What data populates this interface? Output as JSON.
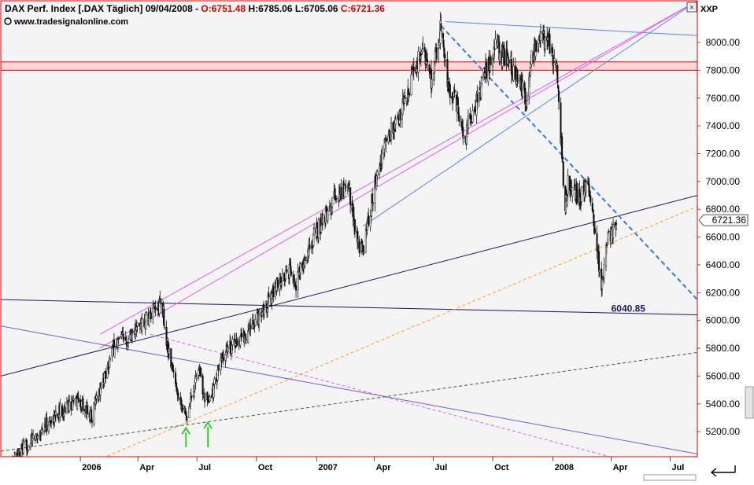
{
  "header": {
    "title": "DAX Perf. Index [.DAX  Täglich] 09/04/2008 - ",
    "open": "O:6751.48",
    "high": "H:6785.06",
    "low": "L:6705.06",
    "close": "C:6721.36",
    "source": "www.tradesignalonline.com"
  },
  "controls": {
    "close_glyph": "×",
    "style_label": "XXP"
  },
  "colors": {
    "background": "#f4f4f4",
    "border": "#d40000",
    "candle": "#111111",
    "band": "#ffd6d6",
    "band_edge": "#d40000",
    "price_box": "#ffffff",
    "navy": "#1a1a60",
    "light_blue": "#5a86e8",
    "dashed_blue": "#3a78d8",
    "orange": "#ff9a2e",
    "magenta": "#e060f0",
    "purple": "#7a5ad0",
    "green_dashed": "#2a6a2a",
    "arrow": "#00d000"
  },
  "chart_data": {
    "type": "candlestick",
    "title": "DAX Perf. Index [.DAX  Täglich]",
    "date": "09/04/2008",
    "ylim": [
      5020,
      8300
    ],
    "y_ticks": [
      5200,
      5400,
      5600,
      5800,
      6000,
      6200,
      6400,
      6600,
      6800,
      7000,
      7200,
      7400,
      7600,
      7800,
      8000
    ],
    "y_tick_labels": [
      "5200.00",
      "5400.00",
      "5600.00",
      "5800.00",
      "6000.00",
      "6200.00",
      "6400.00",
      "6600.00",
      "6800.00",
      "7000.00",
      "7200.00",
      "7400.00",
      "7600.00",
      "7800.00",
      "8000.00"
    ],
    "x_range": [
      "2005-09-01",
      "2008-08-12"
    ],
    "x_ticks": [
      {
        "label": "2006",
        "date": "2006-01-02"
      },
      {
        "label": "Apr",
        "date": "2006-04-01"
      },
      {
        "label": "Jul",
        "date": "2006-07-01"
      },
      {
        "label": "Oct",
        "date": "2006-10-01"
      },
      {
        "label": "2007",
        "date": "2007-01-02"
      },
      {
        "label": "Apr",
        "date": "2007-04-01"
      },
      {
        "label": "Jul",
        "date": "2007-07-01"
      },
      {
        "label": "Oct",
        "date": "2007-10-01"
      },
      {
        "label": "2008",
        "date": "2008-01-02"
      },
      {
        "label": "Apr",
        "date": "2008-04-01"
      },
      {
        "label": "Jul",
        "date": "2008-07-01"
      }
    ],
    "last_price": 6721.36,
    "last_price_label": "6721.36",
    "annotation": {
      "text": "6040.85",
      "value": 6040.85
    },
    "resistance_band": [
      7800,
      7860
    ],
    "ohlc": {
      "open": 6751.48,
      "high": 6785.06,
      "low": 6705.06,
      "close": 6721.36
    },
    "price_path": [
      [
        "2005-09-01",
        4880
      ],
      [
        "2005-10-01",
        5050
      ],
      [
        "2005-11-01",
        5200
      ],
      [
        "2005-12-01",
        5350
      ],
      [
        "2005-12-30",
        5430
      ],
      [
        "2006-01-20",
        5320
      ],
      [
        "2006-02-01",
        5500
      ],
      [
        "2006-02-20",
        5780
      ],
      [
        "2006-03-01",
        5840
      ],
      [
        "2006-03-15",
        5880
      ],
      [
        "2006-04-01",
        5950
      ],
      [
        "2006-04-20",
        6030
      ],
      [
        "2006-05-08",
        6120
      ],
      [
        "2006-05-15",
        5850
      ],
      [
        "2006-05-25",
        5620
      ],
      [
        "2006-06-14",
        5300
      ],
      [
        "2006-06-23",
        5480
      ],
      [
        "2006-07-03",
        5650
      ],
      [
        "2006-07-18",
        5370
      ],
      [
        "2006-08-01",
        5600
      ],
      [
        "2006-08-16",
        5800
      ],
      [
        "2006-09-01",
        5850
      ],
      [
        "2006-09-15",
        5900
      ],
      [
        "2006-10-01",
        6000
      ],
      [
        "2006-10-20",
        6150
      ],
      [
        "2006-11-01",
        6250
      ],
      [
        "2006-11-20",
        6350
      ],
      [
        "2006-12-01",
        6280
      ],
      [
        "2006-12-29",
        6600
      ],
      [
        "2007-01-15",
        6750
      ],
      [
        "2007-02-01",
        6900
      ],
      [
        "2007-02-20",
        6970
      ],
      [
        "2007-03-05",
        6600
      ],
      [
        "2007-03-14",
        6480
      ],
      [
        "2007-04-01",
        6950
      ],
      [
        "2007-04-20",
        7300
      ],
      [
        "2007-05-10",
        7450
      ],
      [
        "2007-06-01",
        7800
      ],
      [
        "2007-06-15",
        7950
      ],
      [
        "2007-06-28",
        7720
      ],
      [
        "2007-07-13",
        8100
      ],
      [
        "2007-07-25",
        7650
      ],
      [
        "2007-08-08",
        7550
      ],
      [
        "2007-08-16",
        7300
      ],
      [
        "2007-09-01",
        7500
      ],
      [
        "2007-09-20",
        7800
      ],
      [
        "2007-10-05",
        7950
      ],
      [
        "2007-10-20",
        7900
      ],
      [
        "2007-11-01",
        7800
      ],
      [
        "2007-11-21",
        7600
      ],
      [
        "2007-12-01",
        7900
      ],
      [
        "2007-12-11",
        8050
      ],
      [
        "2007-12-28",
        8000
      ],
      [
        "2008-01-08",
        7800
      ],
      [
        "2008-01-21",
        6780
      ],
      [
        "2008-01-25",
        7000
      ],
      [
        "2008-02-10",
        6900
      ],
      [
        "2008-02-25",
        6950
      ],
      [
        "2008-03-05",
        6700
      ],
      [
        "2008-03-17",
        6250
      ],
      [
        "2008-03-25",
        6550
      ],
      [
        "2008-04-09",
        6720
      ]
    ],
    "trendlines": [
      {
        "color": "navy",
        "style": "solid",
        "from": [
          "2005-09-01",
          6150
        ],
        "to": [
          "2008-08-12",
          6040.85
        ]
      },
      {
        "color": "navy",
        "style": "solid",
        "from": [
          "2005-09-01",
          5600
        ],
        "to": [
          "2008-08-12",
          6900
        ]
      },
      {
        "color": "light_blue",
        "style": "solid",
        "from": [
          "2007-03-15",
          6680
        ],
        "to": [
          "2008-08-12",
          8300
        ]
      },
      {
        "color": "light_blue",
        "style": "solid",
        "from": [
          "2007-07-20",
          8150
        ],
        "to": [
          "2008-08-12",
          8050
        ]
      },
      {
        "color": "dashed_blue",
        "style": "dashed",
        "from": [
          "2007-07-13",
          8120
        ],
        "to": [
          "2008-08-12",
          6150
        ]
      },
      {
        "color": "orange",
        "style": "dashed",
        "from": [
          "2005-09-01",
          4700
        ],
        "to": [
          "2008-08-12",
          6820
        ]
      },
      {
        "color": "magenta",
        "style": "solid",
        "from": [
          "2006-02-01",
          5900
        ],
        "to": [
          "2008-08-12",
          8300
        ]
      },
      {
        "color": "magenta",
        "style": "solid",
        "from": [
          "2006-02-01",
          5800
        ],
        "to": [
          "2008-08-12",
          8300
        ]
      },
      {
        "color": "magenta",
        "style": "dashed",
        "from": [
          "2006-04-20",
          5900
        ],
        "to": [
          "2008-04-15",
          5000
        ]
      },
      {
        "color": "purple",
        "style": "solid",
        "from": [
          "2005-09-01",
          5960
        ],
        "to": [
          "2008-08-12",
          5040
        ]
      },
      {
        "color": "green_dashed",
        "style": "dashed",
        "from": [
          "2005-09-01",
          5060
        ],
        "to": [
          "2008-08-12",
          5770
        ]
      }
    ],
    "arrows": [
      {
        "date": "2006-06-14",
        "value": 5250
      },
      {
        "date": "2006-07-18",
        "value": 5290
      }
    ]
  }
}
